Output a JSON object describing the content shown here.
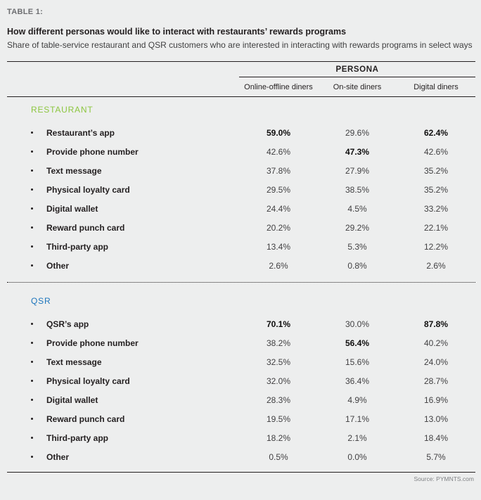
{
  "page": {
    "table_label": "TABLE 1:",
    "title": "How different personas would like to interact with restaurants’ rewards programs",
    "subtitle": "Share of table-service restaurant and QSR customers who are interested in interacting with rewards programs in select ways",
    "source": "Source: PYMNTS.com"
  },
  "colors": {
    "background": "#edeeee",
    "restaurant_green": "#8cc63e",
    "qsr_blue": "#1c75bc",
    "text_dark": "#231f20",
    "text_gray": "#6d6e71",
    "rule": "#231f20"
  },
  "chart_data": {
    "type": "table",
    "title": "How different personas would like to interact with restaurants’ rewards programs",
    "subtitle": "Share of table-service restaurant and QSR customers who are interested in interacting with rewards programs in select ways",
    "persona_header": "PERSONA",
    "columns": [
      "Online-offline diners",
      "On-site diners",
      "Digital diners"
    ],
    "sections": [
      {
        "name": "RESTAURANT",
        "color": "#8cc63e",
        "rows": [
          {
            "label": "Restaurant’s app",
            "values": [
              "59.0%",
              "29.6%",
              "62.4%"
            ],
            "bold": [
              true,
              false,
              true
            ]
          },
          {
            "label": "Provide phone number",
            "values": [
              "42.6%",
              "47.3%",
              "42.6%"
            ],
            "bold": [
              false,
              true,
              false
            ]
          },
          {
            "label": "Text message",
            "values": [
              "37.8%",
              "27.9%",
              "35.2%"
            ],
            "bold": [
              false,
              false,
              false
            ]
          },
          {
            "label": "Physical loyalty card",
            "values": [
              "29.5%",
              "38.5%",
              "35.2%"
            ],
            "bold": [
              false,
              false,
              false
            ]
          },
          {
            "label": "Digital wallet",
            "values": [
              "24.4%",
              "4.5%",
              "33.2%"
            ],
            "bold": [
              false,
              false,
              false
            ]
          },
          {
            "label": "Reward punch card",
            "values": [
              "20.2%",
              "29.2%",
              "22.1%"
            ],
            "bold": [
              false,
              false,
              false
            ]
          },
          {
            "label": "Third-party app",
            "values": [
              "13.4%",
              "5.3%",
              "12.2%"
            ],
            "bold": [
              false,
              false,
              false
            ]
          },
          {
            "label": "Other",
            "values": [
              "2.6%",
              "0.8%",
              "2.6%"
            ],
            "bold": [
              false,
              false,
              false
            ]
          }
        ]
      },
      {
        "name": "QSR",
        "color": "#1c75bc",
        "rows": [
          {
            "label": "QSR’s app",
            "values": [
              "70.1%",
              "30.0%",
              "87.8%"
            ],
            "bold": [
              true,
              false,
              true
            ]
          },
          {
            "label": "Provide phone number",
            "values": [
              "38.2%",
              "56.4%",
              "40.2%"
            ],
            "bold": [
              false,
              true,
              false
            ]
          },
          {
            "label": "Text message",
            "values": [
              "32.5%",
              "15.6%",
              "24.0%"
            ],
            "bold": [
              false,
              false,
              false
            ]
          },
          {
            "label": "Physical loyalty card",
            "values": [
              "32.0%",
              "36.4%",
              "28.7%"
            ],
            "bold": [
              false,
              false,
              false
            ]
          },
          {
            "label": "Digital wallet",
            "values": [
              "28.3%",
              "4.9%",
              "16.9%"
            ],
            "bold": [
              false,
              false,
              false
            ]
          },
          {
            "label": "Reward punch card",
            "values": [
              "19.5%",
              "17.1%",
              "13.0%"
            ],
            "bold": [
              false,
              false,
              false
            ]
          },
          {
            "label": "Third-party app",
            "values": [
              "18.2%",
              "2.1%",
              "18.4%"
            ],
            "bold": [
              false,
              false,
              false
            ]
          },
          {
            "label": "Other",
            "values": [
              "0.5%",
              "0.0%",
              "5.7%"
            ],
            "bold": [
              false,
              false,
              false
            ]
          }
        ]
      }
    ]
  }
}
